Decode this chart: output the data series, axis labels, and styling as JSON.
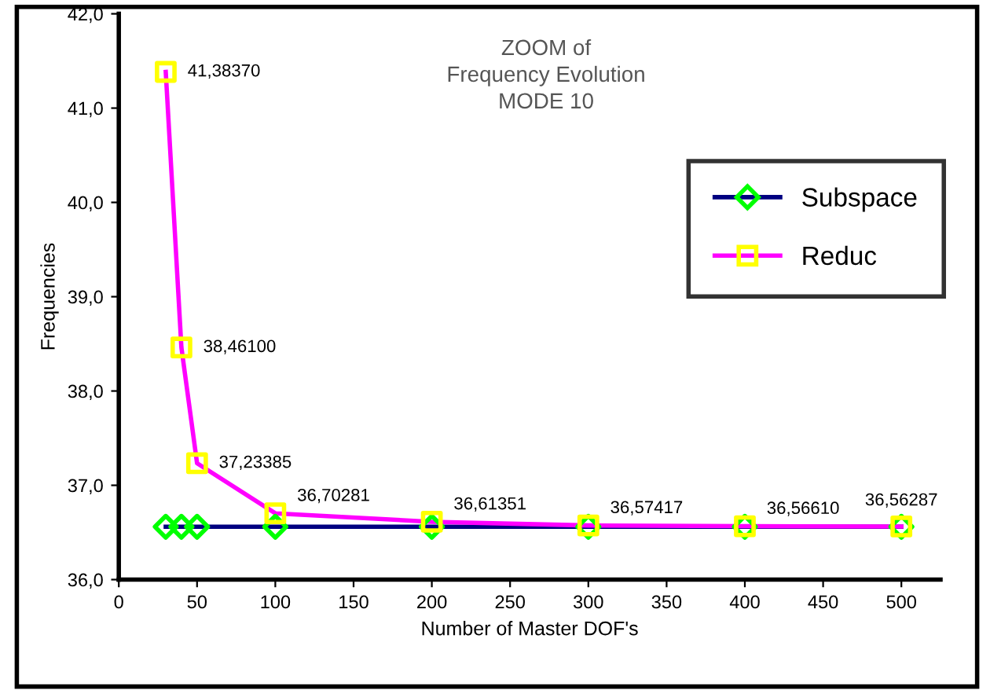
{
  "chart_data": {
    "type": "line",
    "title": "ZOOM of\nFrequency Evolution\nMODE 10",
    "xlabel": "Number of Master DOF's",
    "ylabel": "Frequencies",
    "x": [
      30,
      40,
      50,
      100,
      200,
      300,
      400,
      500
    ],
    "series": [
      {
        "name": "Subspace",
        "color": "#000080",
        "colors": [
          "#00ff00",
          "#00ff00",
          "#00ff00",
          "#00ff00",
          "#00ff00",
          "#00ff00",
          "#00ff00",
          "#00ff00"
        ],
        "marker": "diamond",
        "values": [
          36.56,
          36.56,
          36.56,
          36.56,
          36.56,
          36.56,
          36.56,
          36.56
        ]
      },
      {
        "name": "Reduc",
        "color": "#ff00ff",
        "colors": [
          "#ffff00",
          "#ffff00",
          "#ffff00",
          "#ffff00",
          "#ffff00",
          "#ffff00",
          "#ffff00",
          "#ffff00"
        ],
        "marker": "square",
        "values": [
          41.3837,
          38.461,
          37.23385,
          36.70281,
          36.61351,
          36.57417,
          36.5661,
          36.56287
        ],
        "value_labels": [
          "41,38370",
          "38,46100",
          "37,23385",
          "36,70281",
          "36,61351",
          "36,57417",
          "36,56610",
          "36,56287"
        ]
      }
    ],
    "xlim": [
      0,
      525
    ],
    "xticks": [
      0,
      50,
      100,
      150,
      200,
      250,
      300,
      350,
      400,
      450,
      500
    ],
    "ylim": [
      36.0,
      42.0
    ],
    "yticks": [
      {
        "value": 36.0,
        "label": "36,0"
      },
      {
        "value": 37.0,
        "label": "37,0"
      },
      {
        "value": 38.0,
        "label": "38,0"
      },
      {
        "value": 39.0,
        "label": "39,0"
      },
      {
        "value": 40.0,
        "label": "40,0"
      },
      {
        "value": 41.0,
        "label": "41,0"
      },
      {
        "value": 42.0,
        "label": "42,0"
      }
    ],
    "grid": false,
    "legend": "right"
  }
}
